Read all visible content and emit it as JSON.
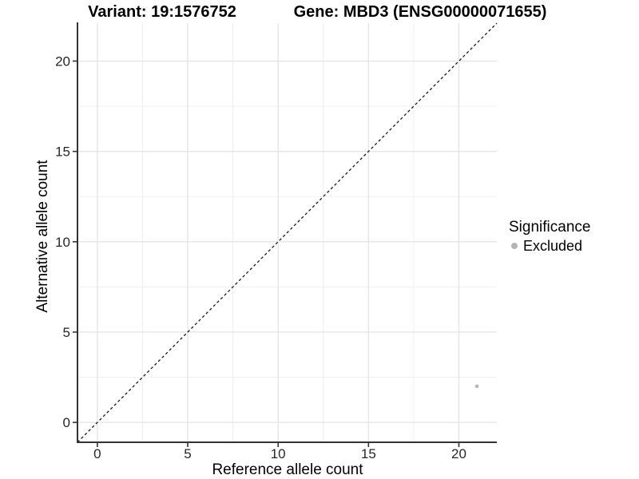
{
  "chart_data": {
    "type": "scatter",
    "title_left": "Variant: 19:1576752",
    "title_right": "Gene: MBD3 (ENSG00000071655)",
    "xlabel": "Reference allele count",
    "ylabel": "Alternative allele count",
    "xlim": [
      -1.1,
      22.1
    ],
    "ylim": [
      -1.1,
      22.1
    ],
    "x_ticks": [
      0,
      5,
      10,
      15,
      20
    ],
    "y_ticks": [
      0,
      5,
      10,
      15,
      20
    ],
    "x_minor_ticks": [
      2.5,
      7.5,
      12.5,
      17.5
    ],
    "y_minor_ticks": [
      2.5,
      7.5,
      12.5,
      17.5
    ],
    "grid": true,
    "reference_line": {
      "type": "abline",
      "slope": 1,
      "intercept": 0,
      "style": "dashed",
      "color": "#1a1a1a"
    },
    "series": [
      {
        "name": "Excluded",
        "color": "#b5b5b5",
        "points": [
          {
            "x": 21,
            "y": 2
          }
        ]
      }
    ],
    "legend": {
      "position": "right",
      "title": "Significance",
      "entries": [
        {
          "label": "Excluded",
          "color": "#b5b5b5"
        }
      ]
    },
    "colors": {
      "axis_line": "#333333",
      "tick_label": "#262626",
      "grid_major": "#e5e5e5",
      "grid_minor": "#f0f0f0",
      "background": "#ffffff"
    }
  }
}
